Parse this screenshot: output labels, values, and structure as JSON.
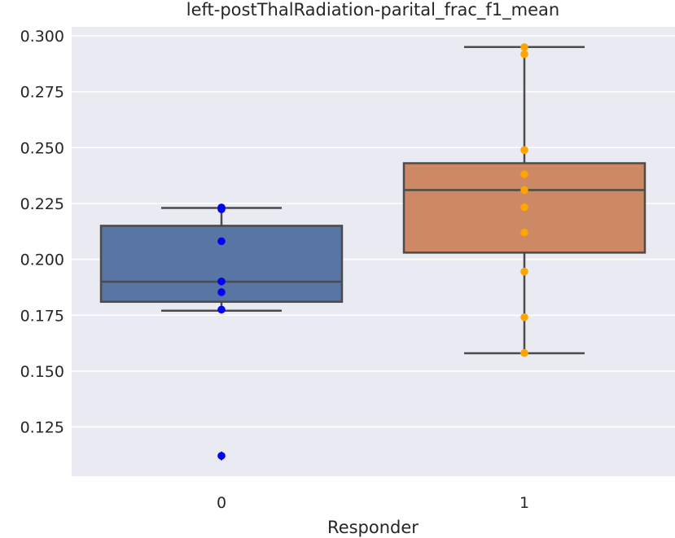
{
  "chart_data": {
    "type": "box",
    "title": "left-postThalRadiation-parital_frac_f1_mean",
    "xlabel": "Responder",
    "ylabel": "",
    "categories": [
      "0",
      "1"
    ],
    "ylim": [
      0.103,
      0.304
    ],
    "yticks": [
      0.125,
      0.15,
      0.175,
      0.2,
      0.225,
      0.25,
      0.275,
      0.3
    ],
    "ytick_labels": [
      "0.125",
      "0.150",
      "0.175",
      "0.200",
      "0.225",
      "0.250",
      "0.275",
      "0.300"
    ],
    "grid": true,
    "boxes": [
      {
        "category": "0",
        "q1": 0.181,
        "median": 0.19,
        "q3": 0.215,
        "whisker_low": 0.177,
        "whisker_high": 0.223,
        "outliers": [
          0.112
        ],
        "color": "#5875a4",
        "points": [
          0.2232,
          0.2224,
          0.2081,
          0.1901,
          0.1853,
          0.1775,
          0.1121
        ]
      },
      {
        "category": "1",
        "q1": 0.203,
        "median": 0.231,
        "q3": 0.243,
        "whisker_low": 0.158,
        "whisker_high": 0.295,
        "outliers": [],
        "color": "#cc8963",
        "points": [
          0.2949,
          0.2918,
          0.2489,
          0.2381,
          0.231,
          0.2233,
          0.212,
          0.1945,
          0.1741,
          0.1581
        ]
      }
    ],
    "point_colors": [
      "#0000ff",
      "#ffa500"
    ],
    "style": {
      "background": "#eaeaf2",
      "grid_color": "#ffffff",
      "line_color": "#4b4b4b"
    }
  }
}
